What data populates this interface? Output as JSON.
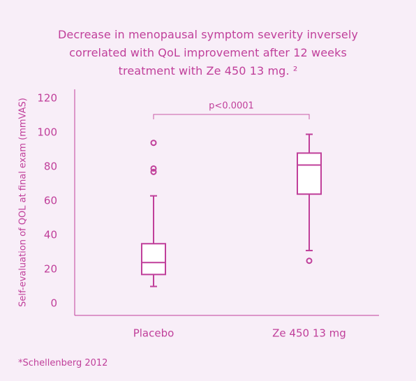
{
  "title_lines": [
    "Decrease in menopausal symptom severity inversely",
    "correlated with QoL improvement after 12 weeks",
    "treatment with Ze 450 13 mg. ²"
  ],
  "footnote": "*Schellenberg 2012",
  "colors": {
    "background": "#f8eef8",
    "primary": "#c03f9a",
    "box_fill": "#ffffff",
    "bracket": "#c85aa6"
  },
  "chart_data": {
    "type": "box",
    "ylabel": "Self-evaluation of QOL at final exam (mmVAS)",
    "ylim": [
      0,
      120
    ],
    "yticks": [
      0,
      20,
      40,
      60,
      80,
      100,
      120
    ],
    "categories": [
      "Placebo",
      "Ze 450 13 mg"
    ],
    "boxes": [
      {
        "label": "Placebo",
        "whisker_low": 10,
        "q1": 17,
        "median": 24,
        "q3": 35,
        "whisker_high": 63,
        "outliers": [
          77,
          79,
          94
        ]
      },
      {
        "label": "Ze 450 13 mg",
        "whisker_low": 31,
        "q1": 64,
        "median": 81,
        "q3": 88,
        "whisker_high": 99,
        "outliers": [
          25
        ]
      }
    ],
    "significance": {
      "label": "p<0.0001",
      "between": [
        "Placebo",
        "Ze 450 13 mg"
      ]
    }
  }
}
